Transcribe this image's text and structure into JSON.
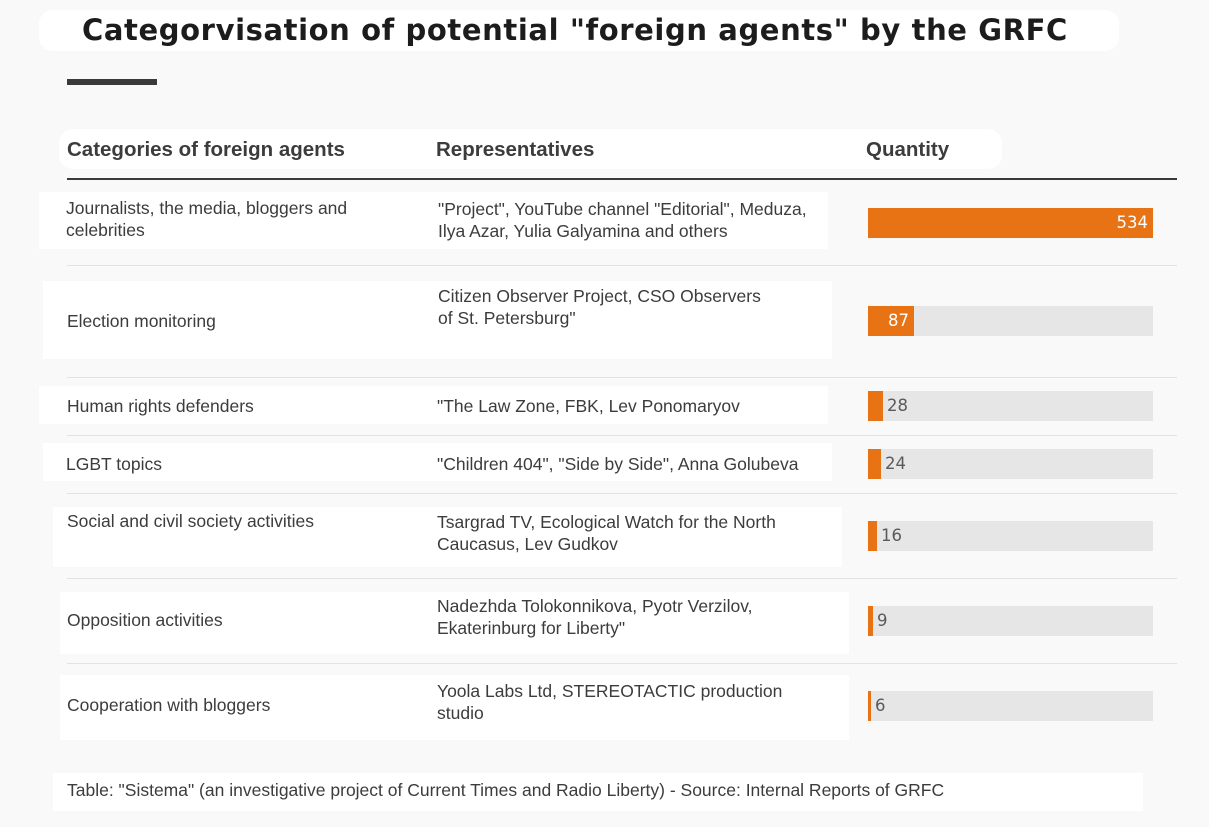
{
  "chart_data": {
    "type": "bar",
    "title": "Categorvisation of potential \"foreign agents\" by the GRFC",
    "columns": {
      "category": "Categories of foreign agents",
      "representatives": "Representatives",
      "quantity": "Quantity"
    },
    "rows": [
      {
        "category": "Journalists, the media, bloggers and celebrities",
        "representatives": "\"Project\", YouTube channel \"Editorial\", Meduza, Ilya Azar, Yulia Galyamina and others",
        "value": 534,
        "label": "534"
      },
      {
        "category": "Election monitoring",
        "representatives": "Citizen Observer Project, CSO Observers of St. Petersburg\"",
        "value": 87,
        "label": "87"
      },
      {
        "category": "Human rights defenders",
        "representatives": "\"The Law Zone, FBK, Lev Ponomaryov",
        "value": 28,
        "label": "28"
      },
      {
        "category": "LGBT topics",
        "representatives": "\"Children 404\", \"Side by Side\", Anna Golubeva",
        "value": 24,
        "label": "24"
      },
      {
        "category": "Social and civil society activities",
        "representatives": "Tsargrad TV, Ecological Watch for the North Caucasus, Lev Gudkov",
        "value": 16,
        "label": "16"
      },
      {
        "category": "Opposition activities",
        "representatives": "Nadezhda Tolokonnikova, Pyotr Verzilov, Ekaterinburg for Liberty\"",
        "value": 9,
        "label": "9"
      },
      {
        "category": "Cooperation with bloggers",
        "representatives": "Yoola Labs Ltd, STEREOTACTIC production studio",
        "value": 6,
        "label": "6"
      }
    ],
    "xlim": [
      0,
      534
    ],
    "bar_color": "#e87315",
    "track_color": "#e6e6e6"
  },
  "footer": "Table: \"Sistema\" (an investigative project of Current Times and Radio Liberty) - Source: Internal Reports of GRFC"
}
